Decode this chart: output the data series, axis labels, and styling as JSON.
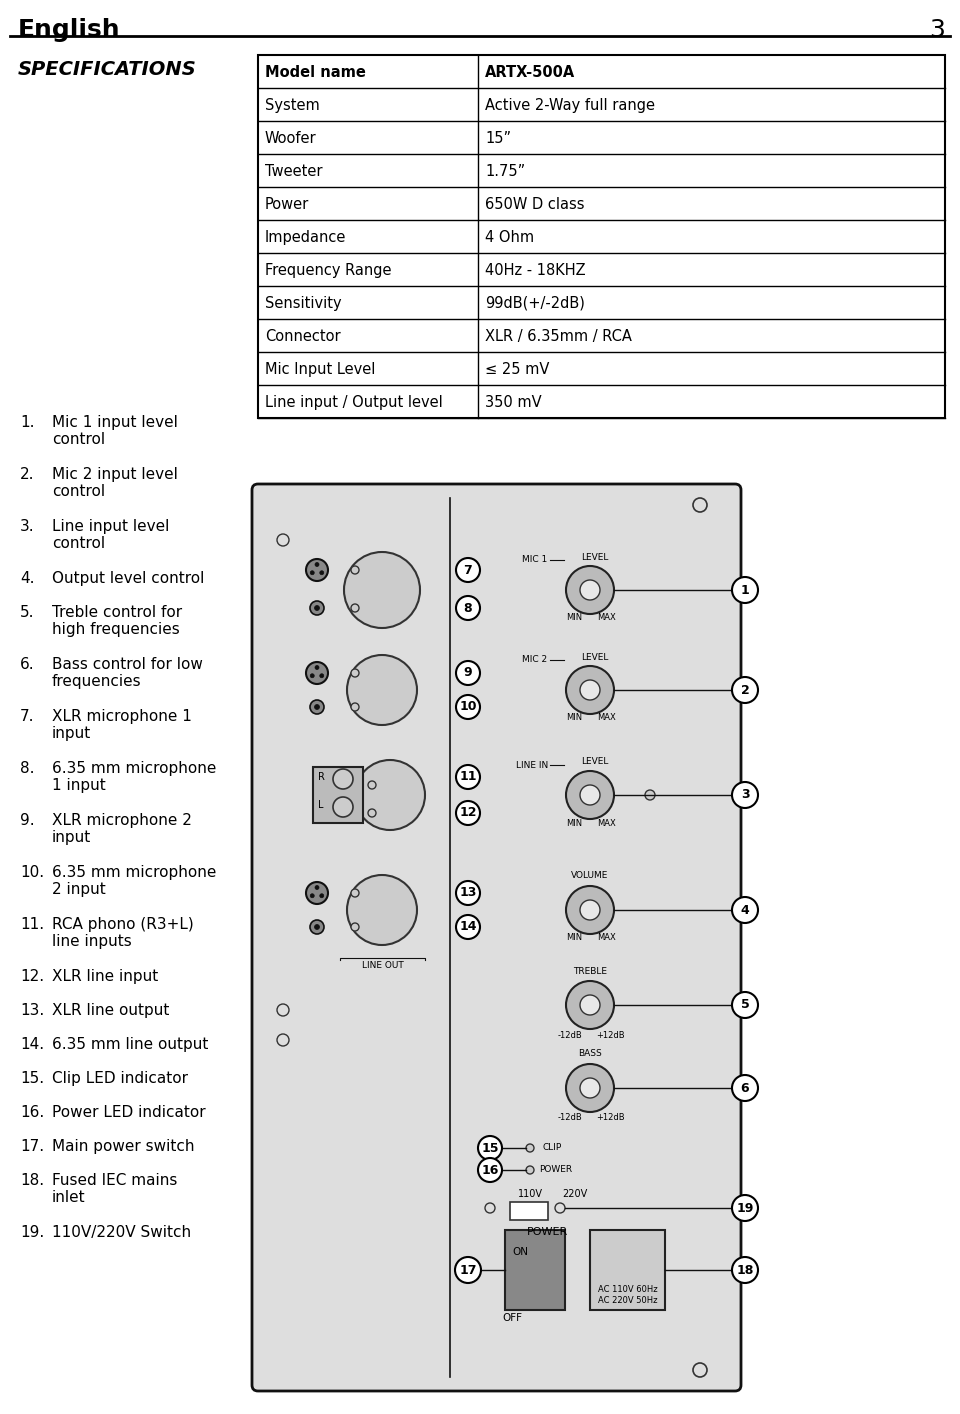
{
  "page_title": "English",
  "page_number": "3",
  "specs_title": "SPECIFICATIONS",
  "table_rows": [
    [
      "Model name",
      "ARTX-500A"
    ],
    [
      "System",
      "Active 2-Way full range"
    ],
    [
      "Woofer",
      "15”"
    ],
    [
      "Tweeter",
      "1.75”"
    ],
    [
      "Power",
      "650W D class"
    ],
    [
      "Impedance",
      "4 Ohm"
    ],
    [
      "Frequency Range",
      "40Hz - 18KHZ"
    ],
    [
      "Sensitivity",
      "99dB(+/-2dB)"
    ],
    [
      "Connector",
      "XLR / 6.35mm / RCA"
    ],
    [
      "Mic Input Level",
      "≤ 25 mV"
    ],
    [
      "Line input / Output level",
      "350 mV"
    ]
  ],
  "numbered_items": [
    "Mic 1 input level\ncontrol",
    "Mic 2 input level\ncontrol",
    "Line input level\ncontrol",
    "Output level control",
    "Treble control for\nhigh frequencies",
    "Bass control for low\nfrequencies",
    "XLR microphone 1\ninput",
    "6.35 mm microphone\n1 input",
    "XLR microphone 2\ninput",
    "6.35 mm microphone\n2 input",
    "RCA phono (R3+L)\nline inputs",
    "XLR line input",
    "XLR line output",
    "6.35 mm line output",
    "Clip LED indicator",
    "Power LED indicator",
    "Main power switch",
    "Fused IEC mains\ninlet",
    "110V/220V Switch"
  ],
  "bg_color": "#ffffff",
  "panel_color": "#e0e0e0",
  "panel_border": "#111111",
  "text_color": "#000000"
}
